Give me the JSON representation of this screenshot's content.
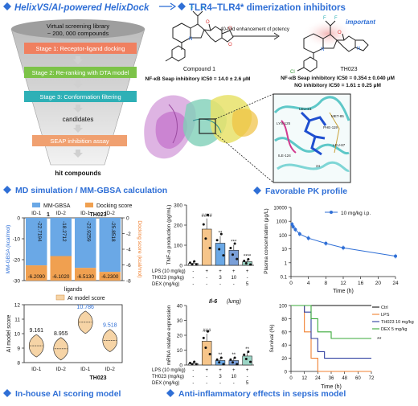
{
  "header": {
    "left_title": "HelixVS/AI-powered HelixDock",
    "right_title": "TLR4–TLR4* dimerization inhibitors"
  },
  "funnel": {
    "library_line1": "Virtual screening library",
    "library_line2": "~ 200, 000 compounds",
    "stage1": "Stage 1: Receptor-ligand docking",
    "stage2": "Stage 2: Re-ranking with DTA model",
    "stage3": "Stage 3: Conformation filtering",
    "candidates": "candidates",
    "seap": "SEAP inhibition assay",
    "hits": "hit compounds"
  },
  "compounds": {
    "enhancement": "40-fold enhancement of potency",
    "important": "important",
    "c1_name": "Compound 1",
    "c1_ic50": "NF-κB Seap inhibitory IC50 = 14.0 ± 2.6 μM",
    "t_name": "TH023",
    "t_ic50_1": "NF-κB Seap inhibitory IC50 = 0.354 ± 0.040 μM",
    "t_ic50_2": "NO inhibitory IC50 = 1.61 ± 0.25 μM",
    "residues": [
      "LYS-125",
      "ILE-124",
      "LEU-S1",
      "MET-85",
      "PHE-119",
      "LEU-87",
      "24"
    ]
  },
  "sections": {
    "md": "MD simulation / MM-GBSA calculation",
    "pk": "Favorable PK profile",
    "ai": "In-house AI scoring model",
    "inflam": "Anti-inflammatory effects in sepsis model"
  },
  "mmgbsa": {
    "legend_a": "MM-GBSA",
    "legend_b": "Docking score",
    "group1": "1",
    "group2": "TH023",
    "cats": [
      "ID-1",
      "ID-2",
      "ID-1",
      "ID-2"
    ],
    "ylabel_left": "MM-GBSA (kcal/mol)",
    "ylabel_right": "Docking score (kcal/mol)",
    "xlabel": "ligands",
    "ylim": [
      0,
      -30
    ],
    "yticks": [
      "0",
      "-10",
      "-20",
      "-30"
    ],
    "yticks_right": [
      "0",
      "-2",
      "-4",
      "-6",
      "-8"
    ],
    "mmgbsa_labels": [
      "-22.7194",
      "-18.2712",
      "-23.9259",
      "-25.8518"
    ],
    "docking_labels": [
      "-6.2090",
      "-6.1020",
      "-6.5130",
      "-6.2300"
    ]
  },
  "ai_model": {
    "legend": "AI model score",
    "ylabel": "AI model score",
    "yticks": [
      "8",
      "9",
      "10",
      "11",
      "12"
    ],
    "cats": [
      "ID-1",
      "ID-2",
      "ID-1",
      "ID-2"
    ],
    "group2": "TH023",
    "labels": [
      "9.161",
      "8.955",
      "10.786",
      "9.518"
    ]
  },
  "tnf": {
    "ylabel": "TNF-α production (pg/mL)",
    "yticks": [
      "0",
      "100",
      "200",
      "300"
    ],
    "sig": [
      "####",
      "**",
      "***",
      "****"
    ],
    "rows": [
      {
        "label": "LPS (10 mg/kg)",
        "vals": [
          "-",
          "+",
          "+",
          "+",
          "+"
        ]
      },
      {
        "label": "TH023 (mg/kg)",
        "vals": [
          "-",
          "-",
          "3",
          "10",
          "-"
        ]
      },
      {
        "label": "DEX (mg/kg)",
        "vals": [
          "-",
          "-",
          "-",
          "-",
          "5"
        ]
      }
    ]
  },
  "il6": {
    "title": "Il-6",
    "tissue": "(lung)",
    "ylabel": "mRNA relative expression",
    "yticks": [
      "0",
      "10",
      "20",
      "30",
      "40"
    ],
    "sig": [
      "###",
      "**",
      "**",
      "**"
    ],
    "rows": [
      {
        "label": "LPS (10 mg/kg)",
        "vals": [
          "-",
          "+",
          "+",
          "+",
          "+"
        ]
      },
      {
        "label": "TH023 (mg/kg)",
        "vals": [
          "-",
          "-",
          "3",
          "10",
          "-"
        ]
      },
      {
        "label": "DEX (mg/kg)",
        "vals": [
          "-",
          "-",
          "-",
          "-",
          "5"
        ]
      }
    ]
  },
  "pk": {
    "legend": "10 mg/kg i.p.",
    "ylabel": "Plasma concentration (μg/L)",
    "xlabel": "Time (h)",
    "yticks": [
      "10000",
      "1000",
      "100",
      "10",
      "1",
      "0.1"
    ],
    "xticks": [
      "0",
      "4",
      "8",
      "12",
      "16",
      "20",
      "24"
    ]
  },
  "survival": {
    "ylabel": "Survival (%)",
    "xlabel": "Time (h)",
    "yticks": [
      "0",
      "20",
      "40",
      "60",
      "80",
      "100"
    ],
    "xticks": [
      "0",
      "12",
      "24",
      "36",
      "48",
      "60",
      "72"
    ],
    "legend": [
      "Ctrl",
      "LPS",
      "TH023 10 mg/kg",
      "DEX 5 mg/kg"
    ],
    "sig": "**"
  },
  "chart_data": [
    {
      "type": "bar",
      "categories": [
        "1 ID-1",
        "1 ID-2",
        "TH023 ID-1",
        "TH023 ID-2"
      ],
      "series": [
        {
          "name": "MM-GBSA",
          "values": [
            -22.7194,
            -18.2712,
            -23.9259,
            -25.8518
          ]
        },
        {
          "name": "Docking score",
          "values": [
            -6.209,
            -6.102,
            -6.513,
            -6.23
          ]
        }
      ],
      "xlabel": "ligands",
      "ylabel": "MM-GBSA (kcal/mol)",
      "ylim": [
        -30,
        0
      ]
    },
    {
      "type": "scatter",
      "categories": [
        "1 ID-1",
        "1 ID-2",
        "TH023 ID-1",
        "TH023 ID-2"
      ],
      "values": [
        9.161,
        8.955,
        10.786,
        9.518
      ],
      "ylabel": "AI model score",
      "ylim": [
        8,
        12
      ]
    },
    {
      "type": "bar",
      "categories": [
        "-/-/-",
        "+/-/-",
        "+/3/-",
        "+/10/-",
        "+/-/5"
      ],
      "values": [
        10,
        180,
        110,
        75,
        18
      ],
      "ylabel": "TNF-α production (pg/mL)",
      "ylim": [
        0,
        300
      ]
    },
    {
      "type": "bar",
      "categories": [
        "-/-/-",
        "+/-/-",
        "+/3/-",
        "+/10/-",
        "+/-/5"
      ],
      "values": [
        1,
        16,
        3,
        3,
        6
      ],
      "ylabel": "mRNA relative expression",
      "ylim": [
        0,
        40
      ]
    },
    {
      "type": "line",
      "x": [
        0.25,
        0.5,
        1,
        2,
        4,
        8,
        12,
        24
      ],
      "values": [
        600,
        400,
        250,
        120,
        60,
        25,
        12,
        3
      ],
      "xlabel": "Time (h)",
      "ylabel": "Plasma concentration (μg/L)",
      "log_y": true
    },
    {
      "type": "line",
      "x": [
        0,
        12,
        18,
        24,
        30,
        36,
        48,
        60,
        72
      ],
      "series": [
        {
          "name": "Ctrl",
          "values": [
            100,
            100,
            100,
            100,
            100,
            100,
            100,
            100,
            100
          ]
        },
        {
          "name": "LPS",
          "values": [
            100,
            60,
            20,
            0,
            0,
            0,
            0,
            0,
            0
          ]
        },
        {
          "name": "TH023 10 mg/kg",
          "values": [
            100,
            90,
            50,
            30,
            20,
            20,
            20,
            20,
            20
          ]
        },
        {
          "name": "DEX 5 mg/kg",
          "values": [
            100,
            100,
            80,
            60,
            60,
            50,
            50,
            50,
            50
          ]
        }
      ],
      "xlabel": "Time (h)",
      "ylabel": "Survival (%)",
      "ylim": [
        0,
        100
      ]
    }
  ]
}
